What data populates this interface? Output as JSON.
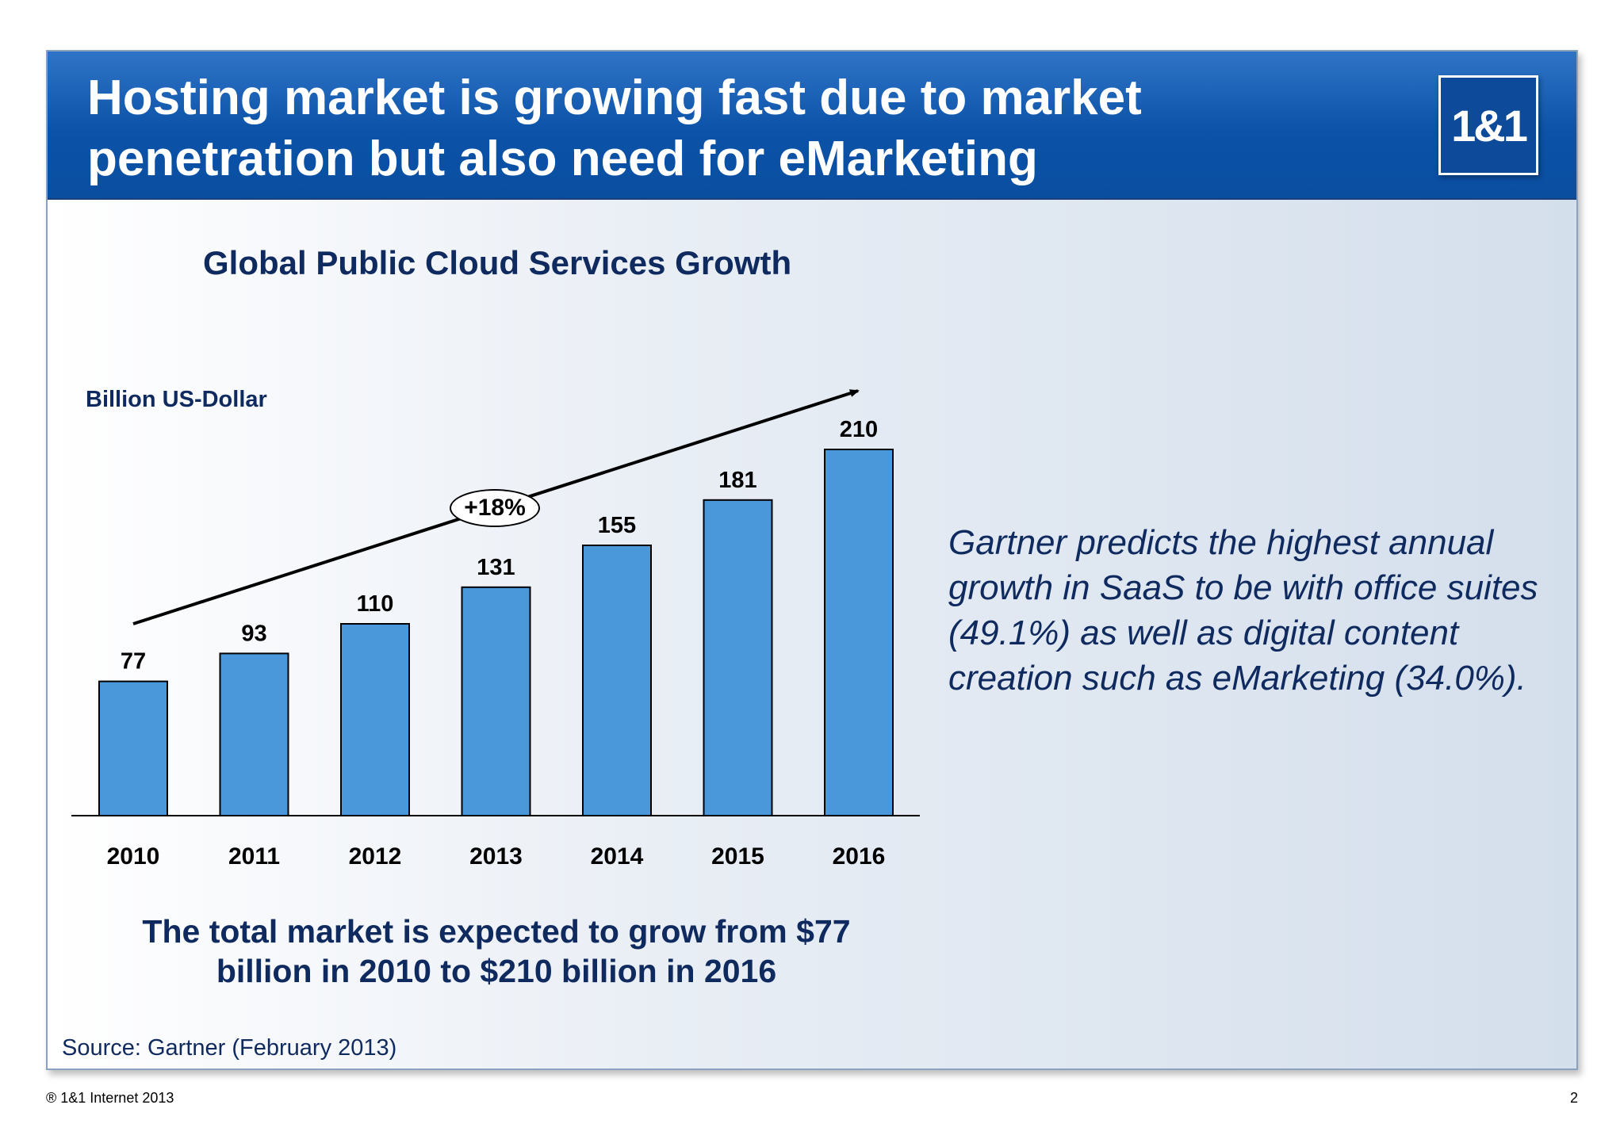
{
  "header": {
    "title": "Hosting market is growing fast due to market\npenetration but also need for eMarketing",
    "logo_text": "1&1"
  },
  "chart": {
    "growth_label": "+18%"
  },
  "chart_data": {
    "type": "bar",
    "title": "Global Public Cloud Services Growth",
    "ylabel": "Billion US-Dollar",
    "xlabel": "",
    "categories": [
      "2010",
      "2011",
      "2012",
      "2013",
      "2014",
      "2015",
      "2016"
    ],
    "values": [
      77,
      93,
      110,
      131,
      155,
      181,
      210
    ],
    "data_labels": [
      "77",
      "93",
      "110",
      "131",
      "155",
      "181",
      "210"
    ],
    "ylim": [
      0,
      210
    ],
    "grid": false,
    "bar_color": "#4a98d9",
    "annotation": "+18%"
  },
  "main": {
    "bottom_statement": "The total market is expected to grow from $77 billion in 2010 to $210 billion in 2016",
    "source": "Source: Gartner (February 2013)",
    "side_text": "Gartner predicts the highest annual growth in SaaS to be with office suites (49.1%) as well as digital content creation such as eMarketing (34.0%)."
  },
  "footer": {
    "copyright": "® 1&1 Internet 2013",
    "page_number": "2"
  },
  "colors": {
    "header_blue": "#0b52a8",
    "navy_text": "#0f2a5e",
    "bar_fill": "#4a98d9"
  }
}
